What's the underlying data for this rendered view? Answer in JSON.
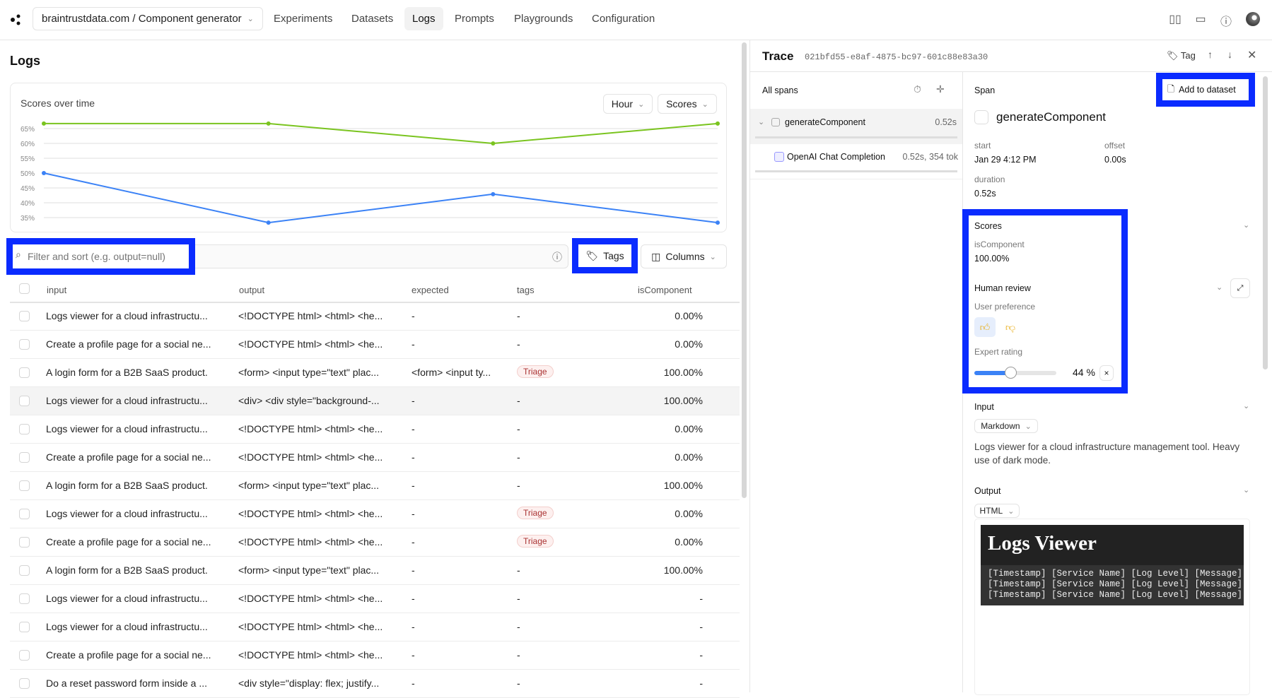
{
  "topbar": {
    "project": "braintrustdata.com / Component generator",
    "nav": [
      "Experiments",
      "Datasets",
      "Logs",
      "Prompts",
      "Playgrounds",
      "Configuration"
    ],
    "active": "Logs"
  },
  "page_title": "Logs",
  "chart_data": {
    "type": "line",
    "title": "Scores over time",
    "ylabel": "",
    "xlabel": "",
    "yticks": [
      "65%",
      "60%",
      "55%",
      "50%",
      "45%",
      "40%",
      "35%"
    ],
    "ylim": [
      32,
      68
    ],
    "grid": true,
    "series": [
      {
        "color": "#7ac41f",
        "values": [
          66.7,
          66.7,
          60,
          66.7
        ]
      },
      {
        "color": "#3b82f6",
        "values": [
          50,
          33.3,
          42.9,
          33.3
        ]
      }
    ]
  },
  "chart_controls": {
    "interval": "Hour",
    "metric": "Scores"
  },
  "filter": {
    "placeholder": "Filter and sort (e.g. output=null)",
    "tags": "Tags",
    "columns": "Columns"
  },
  "table": {
    "headers": [
      "input",
      "output",
      "expected",
      "tags",
      "isComponent"
    ],
    "rows": [
      [
        "Logs viewer for a cloud infrastructu...",
        "<!DOCTYPE html> <html> <he...",
        "-",
        "-",
        "0.00%"
      ],
      [
        "Create a profile page for a social ne...",
        "<!DOCTYPE html> <html> <he...",
        "-",
        "-",
        "0.00%"
      ],
      [
        "A login form for a B2B SaaS product.",
        "<form> <input type=\"text\" plac...",
        "<form> <input ty...",
        "Triage",
        "100.00%"
      ],
      [
        "Logs viewer for a cloud infrastructu...",
        "<div> <div style=\"background-...",
        "-",
        "-",
        "100.00%"
      ],
      [
        "Logs viewer for a cloud infrastructu...",
        "<!DOCTYPE html> <html> <he...",
        "-",
        "-",
        "0.00%"
      ],
      [
        "Create a profile page for a social ne...",
        "<!DOCTYPE html> <html> <he...",
        "-",
        "-",
        "0.00%"
      ],
      [
        "A login form for a B2B SaaS product.",
        "<form> <input type=\"text\" plac...",
        "-",
        "-",
        "100.00%"
      ],
      [
        "Logs viewer for a cloud infrastructu...",
        "<!DOCTYPE html> <html> <he...",
        "-",
        "Triage",
        "0.00%"
      ],
      [
        "Create a profile page for a social ne...",
        "<!DOCTYPE html> <html> <he...",
        "-",
        "Triage",
        "0.00%"
      ],
      [
        "A login form for a B2B SaaS product.",
        "<form> <input type=\"text\" plac...",
        "-",
        "-",
        "100.00%"
      ],
      [
        "Logs viewer for a cloud infrastructu...",
        "<!DOCTYPE html> <html> <he...",
        "-",
        "-",
        "-"
      ],
      [
        "Logs viewer for a cloud infrastructu...",
        "<!DOCTYPE html> <html> <he...",
        "-",
        "-",
        "-"
      ],
      [
        "Create a profile page for a social ne...",
        "<!DOCTYPE html> <html> <he...",
        "-",
        "-",
        "-"
      ],
      [
        "Do a reset password form inside a ...",
        "<div style=\"display: flex; justify...",
        "-",
        "-",
        "-"
      ]
    ]
  },
  "trace": {
    "title": "Trace",
    "id": "021bfd55-e8af-4875-bc97-601c88e83a30",
    "tag": "Tag",
    "all_spans": "All spans",
    "spans": [
      {
        "name": "generateComponent",
        "meta": "0.52s"
      },
      {
        "name": "OpenAI Chat Completion",
        "meta": "0.52s, 354 tok"
      }
    ],
    "span_label": "Span",
    "add_to_dataset": "Add to dataset",
    "span_name": "generateComponent",
    "start_label": "start",
    "start": "Jan 29 4:12 PM",
    "offset_label": "offset",
    "offset": "0.00s",
    "duration_label": "duration",
    "duration": "0.52s",
    "scores": {
      "label": "Scores",
      "name": "isComponent",
      "value": "100.00%"
    },
    "human_review": {
      "label": "Human review",
      "pref_label": "User preference",
      "rating_label": "Expert rating",
      "rating": 44,
      "rating_text": "44 %",
      "clear": "×"
    },
    "input": {
      "label": "Input",
      "format": "Markdown",
      "text": "Logs viewer for a cloud infrastructure management tool. Heavy use of dark mode."
    },
    "output": {
      "label": "Output",
      "format": "HTML",
      "preview_title": "Logs Viewer",
      "preview_lines": [
        "[Timestamp] [Service Name] [Log Level] [Message]",
        "[Timestamp] [Service Name] [Log Level] [Message]",
        "[Timestamp] [Service Name] [Log Level] [Message]"
      ]
    }
  }
}
